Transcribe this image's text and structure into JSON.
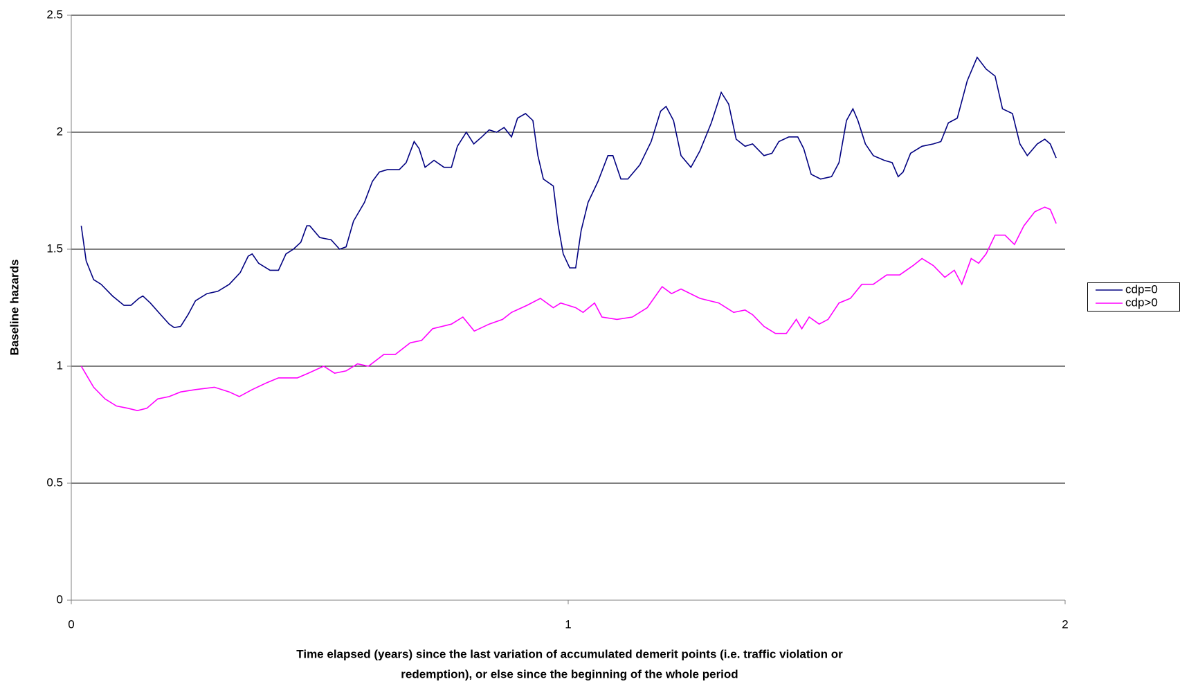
{
  "chart_data": {
    "type": "line",
    "x_label": [
      "Time elapsed (years) since the last variation of accumulated demerit points (i.e. traffic violation or",
      "redemption), or else since the beginning of the whole period"
    ],
    "y_label": "Baseline hazards",
    "xlim": [
      0,
      2
    ],
    "xticks": [
      0,
      1,
      2
    ],
    "ylim": [
      0,
      2.5
    ],
    "yticks": [
      0,
      0.5,
      1,
      1.5,
      2,
      2.5
    ],
    "grid": true,
    "legend": "right",
    "series": [
      {
        "name": "cdp=0",
        "color": "#000080",
        "x": [
          0.02,
          0.03,
          0.045,
          0.06,
          0.083,
          0.106,
          0.12,
          0.136,
          0.144,
          0.159,
          0.18,
          0.197,
          0.207,
          0.22,
          0.235,
          0.25,
          0.273,
          0.295,
          0.318,
          0.34,
          0.356,
          0.364,
          0.377,
          0.4,
          0.417,
          0.432,
          0.447,
          0.462,
          0.474,
          0.48,
          0.5,
          0.523,
          0.54,
          0.553,
          0.568,
          0.59,
          0.606,
          0.62,
          0.636,
          0.66,
          0.674,
          0.69,
          0.7,
          0.712,
          0.73,
          0.75,
          0.765,
          0.777,
          0.795,
          0.81,
          0.826,
          0.841,
          0.856,
          0.871,
          0.886,
          0.898,
          0.914,
          0.929,
          0.939,
          0.95,
          0.97,
          0.98,
          0.99,
          1.003,
          1.015,
          1.026,
          1.04,
          1.06,
          1.08,
          1.09,
          1.106,
          1.12,
          1.144,
          1.167,
          1.186,
          1.197,
          1.212,
          1.227,
          1.247,
          1.265,
          1.288,
          1.308,
          1.323,
          1.338,
          1.356,
          1.371,
          1.394,
          1.41,
          1.424,
          1.444,
          1.462,
          1.474,
          1.489,
          1.508,
          1.53,
          1.545,
          1.56,
          1.573,
          1.583,
          1.598,
          1.614,
          1.636,
          1.652,
          1.664,
          1.674,
          1.689,
          1.712,
          1.735,
          1.75,
          1.765,
          1.783,
          1.803,
          1.823,
          1.841,
          1.859,
          1.874,
          1.894,
          1.909,
          1.924,
          1.944,
          1.959,
          1.97,
          1.982
        ],
        "values": [
          1.6,
          1.45,
          1.37,
          1.35,
          1.3,
          1.26,
          1.26,
          1.29,
          1.3,
          1.27,
          1.22,
          1.18,
          1.165,
          1.17,
          1.22,
          1.28,
          1.31,
          1.32,
          1.35,
          1.4,
          1.47,
          1.48,
          1.44,
          1.41,
          1.41,
          1.48,
          1.5,
          1.53,
          1.6,
          1.6,
          1.55,
          1.54,
          1.5,
          1.51,
          1.62,
          1.7,
          1.79,
          1.83,
          1.84,
          1.84,
          1.87,
          1.96,
          1.93,
          1.85,
          1.88,
          1.85,
          1.85,
          1.94,
          2.0,
          1.95,
          1.98,
          2.01,
          2.0,
          2.02,
          1.98,
          2.06,
          2.08,
          2.05,
          1.9,
          1.8,
          1.77,
          1.6,
          1.48,
          1.42,
          1.42,
          1.58,
          1.7,
          1.79,
          1.9,
          1.9,
          1.8,
          1.8,
          1.86,
          1.96,
          2.09,
          2.11,
          2.05,
          1.9,
          1.85,
          1.92,
          2.04,
          2.17,
          2.12,
          1.97,
          1.94,
          1.95,
          1.9,
          1.91,
          1.96,
          1.98,
          1.98,
          1.93,
          1.82,
          1.8,
          1.81,
          1.87,
          2.05,
          2.1,
          2.05,
          1.95,
          1.9,
          1.88,
          1.87,
          1.81,
          1.83,
          1.91,
          1.94,
          1.95,
          1.96,
          2.04,
          2.06,
          2.22,
          2.32,
          2.27,
          2.24,
          2.1,
          2.08,
          1.95,
          1.9,
          1.95,
          1.97,
          1.95,
          1.89
        ]
      },
      {
        "name": "cdp>0",
        "color": "#ff00ff",
        "x": [
          0.02,
          0.045,
          0.068,
          0.091,
          0.114,
          0.133,
          0.152,
          0.174,
          0.197,
          0.22,
          0.25,
          0.288,
          0.318,
          0.338,
          0.364,
          0.394,
          0.417,
          0.455,
          0.477,
          0.508,
          0.53,
          0.553,
          0.576,
          0.598,
          0.629,
          0.652,
          0.682,
          0.705,
          0.727,
          0.765,
          0.788,
          0.811,
          0.841,
          0.868,
          0.886,
          0.917,
          0.944,
          0.97,
          0.985,
          1.015,
          1.03,
          1.053,
          1.068,
          1.098,
          1.129,
          1.159,
          1.189,
          1.208,
          1.227,
          1.265,
          1.303,
          1.333,
          1.356,
          1.371,
          1.394,
          1.417,
          1.439,
          1.459,
          1.47,
          1.485,
          1.505,
          1.523,
          1.545,
          1.568,
          1.591,
          1.614,
          1.641,
          1.667,
          1.694,
          1.712,
          1.735,
          1.758,
          1.777,
          1.792,
          1.811,
          1.826,
          1.841,
          1.859,
          1.879,
          1.898,
          1.917,
          1.939,
          1.959,
          1.97,
          1.982
        ],
        "values": [
          1.0,
          0.91,
          0.86,
          0.83,
          0.82,
          0.81,
          0.82,
          0.86,
          0.87,
          0.89,
          0.9,
          0.91,
          0.89,
          0.87,
          0.9,
          0.93,
          0.95,
          0.95,
          0.97,
          1.0,
          0.97,
          0.98,
          1.01,
          1.0,
          1.05,
          1.05,
          1.1,
          1.11,
          1.16,
          1.18,
          1.21,
          1.15,
          1.18,
          1.2,
          1.23,
          1.26,
          1.29,
          1.25,
          1.27,
          1.25,
          1.23,
          1.27,
          1.21,
          1.2,
          1.21,
          1.25,
          1.34,
          1.31,
          1.33,
          1.29,
          1.27,
          1.23,
          1.24,
          1.22,
          1.17,
          1.14,
          1.14,
          1.2,
          1.16,
          1.21,
          1.18,
          1.2,
          1.27,
          1.29,
          1.35,
          1.35,
          1.39,
          1.39,
          1.43,
          1.46,
          1.43,
          1.38,
          1.41,
          1.35,
          1.46,
          1.44,
          1.48,
          1.56,
          1.56,
          1.52,
          1.6,
          1.66,
          1.68,
          1.67,
          1.61
        ]
      }
    ]
  }
}
